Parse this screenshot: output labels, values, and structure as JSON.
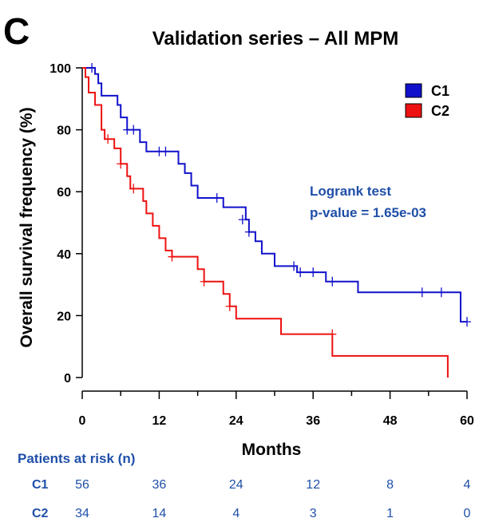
{
  "panel_label": "C",
  "chart_data": {
    "type": "line",
    "title": "Validation series – All MPM",
    "xlabel": "Months",
    "ylabel": "Overall survival frequency (%)",
    "xlim": [
      0,
      60
    ],
    "ylim": [
      0,
      100
    ],
    "xticks": [
      0,
      12,
      24,
      36,
      48,
      60
    ],
    "yticks": [
      0,
      20,
      40,
      60,
      80,
      100
    ],
    "grid": false,
    "legend_position": "top-right",
    "annotation": {
      "lines": [
        "Logrank test",
        "p-value = 1.65e-03"
      ],
      "color": "#1f4fa8"
    },
    "series": [
      {
        "name": "C1",
        "color": "#1111cc",
        "steps": [
          [
            0,
            100
          ],
          [
            2,
            98
          ],
          [
            2.5,
            95
          ],
          [
            3,
            91
          ],
          [
            5,
            91
          ],
          [
            5.5,
            88
          ],
          [
            6,
            84
          ],
          [
            7,
            80
          ],
          [
            9,
            76
          ],
          [
            10,
            73
          ],
          [
            14,
            73
          ],
          [
            15,
            69
          ],
          [
            16,
            66
          ],
          [
            17,
            62
          ],
          [
            18,
            58
          ],
          [
            21,
            58
          ],
          [
            22,
            55
          ],
          [
            25,
            55
          ],
          [
            25.5,
            51
          ],
          [
            26,
            47
          ],
          [
            27,
            44
          ],
          [
            28,
            40
          ],
          [
            30,
            36
          ],
          [
            33,
            36
          ],
          [
            33.5,
            34
          ],
          [
            37,
            34
          ],
          [
            38,
            31
          ],
          [
            42,
            31
          ],
          [
            43,
            27.5
          ],
          [
            58,
            27.5
          ],
          [
            59,
            18
          ],
          [
            60,
            18
          ]
        ],
        "censor": [
          [
            1.5,
            100
          ],
          [
            7,
            80
          ],
          [
            8,
            80
          ],
          [
            12,
            73
          ],
          [
            13,
            73
          ],
          [
            21,
            58
          ],
          [
            25,
            51
          ],
          [
            26,
            47
          ],
          [
            33,
            36
          ],
          [
            34,
            34
          ],
          [
            36,
            34
          ],
          [
            39,
            31
          ],
          [
            53,
            27.5
          ],
          [
            56,
            27.5
          ],
          [
            60,
            18
          ]
        ]
      },
      {
        "name": "C2",
        "color": "#ee1111",
        "steps": [
          [
            0,
            100
          ],
          [
            0.5,
            97
          ],
          [
            1,
            92
          ],
          [
            2,
            88
          ],
          [
            3,
            80
          ],
          [
            3.5,
            77
          ],
          [
            5,
            74
          ],
          [
            6,
            69
          ],
          [
            7,
            65
          ],
          [
            7.5,
            61
          ],
          [
            9,
            61
          ],
          [
            9.5,
            57
          ],
          [
            10,
            53
          ],
          [
            11,
            49
          ],
          [
            12,
            45
          ],
          [
            13,
            41
          ],
          [
            14,
            39
          ],
          [
            17,
            39
          ],
          [
            18,
            35
          ],
          [
            19,
            31
          ],
          [
            22,
            27
          ],
          [
            23,
            23
          ],
          [
            24,
            19
          ],
          [
            30.5,
            19
          ],
          [
            31,
            14
          ],
          [
            38.5,
            14
          ],
          [
            39,
            7
          ],
          [
            57,
            7
          ],
          [
            57,
            0
          ]
        ],
        "censor": [
          [
            4,
            77
          ],
          [
            6,
            69
          ],
          [
            8,
            61
          ],
          [
            14,
            39
          ],
          [
            19,
            31
          ],
          [
            23,
            23
          ],
          [
            39,
            14
          ]
        ]
      }
    ],
    "risk_table": {
      "title": "Patients at risk (n)",
      "rows": [
        {
          "label": "C1",
          "values": [
            56,
            36,
            24,
            12,
            8,
            4
          ]
        },
        {
          "label": "C2",
          "values": [
            34,
            14,
            4,
            3,
            1,
            0
          ]
        }
      ]
    }
  }
}
